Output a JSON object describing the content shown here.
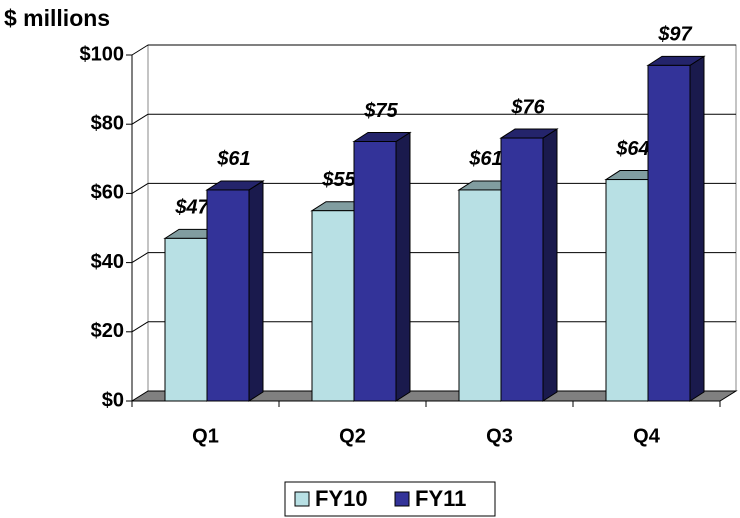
{
  "chart_data": {
    "type": "bar3d",
    "title": "$ millions",
    "categories": [
      "Q1",
      "Q2",
      "Q3",
      "Q4"
    ],
    "series": [
      {
        "name": "FY10",
        "color": "#b8e0e4",
        "values": [
          47,
          55,
          61,
          64
        ],
        "value_labels": [
          "$47",
          "$55",
          "$61",
          "$64"
        ]
      },
      {
        "name": "FY11",
        "color": "#333399",
        "values": [
          61,
          75,
          76,
          97
        ],
        "value_labels": [
          "$61",
          "$75",
          "$76",
          "$97"
        ]
      }
    ],
    "ylim": [
      0,
      100
    ],
    "yticks": [
      {
        "value": 0,
        "label": "$0"
      },
      {
        "value": 20,
        "label": "$20"
      },
      {
        "value": 40,
        "label": "$40"
      },
      {
        "value": 60,
        "label": "$60"
      },
      {
        "value": 80,
        "label": "$80"
      },
      {
        "value": 100,
        "label": "$100"
      }
    ],
    "grid": true,
    "legend": "bottom"
  }
}
